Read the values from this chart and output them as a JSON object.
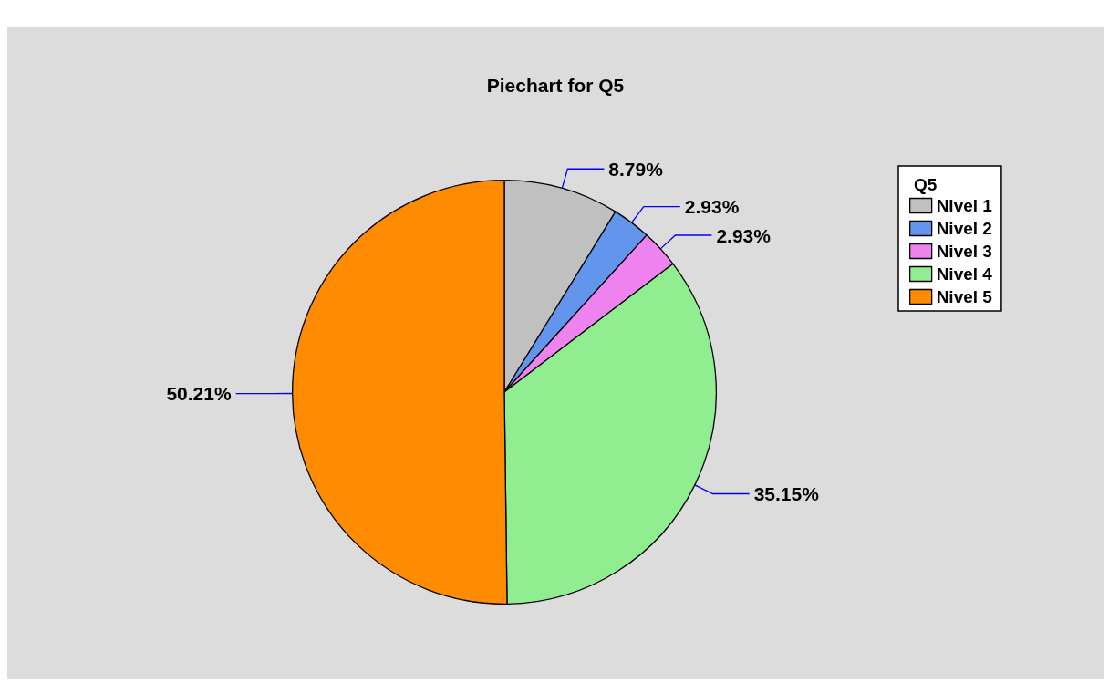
{
  "chart_data": {
    "type": "pie",
    "title": "Piechart for Q5",
    "legend_title": "Q5",
    "legend": "top right",
    "value_labels": [
      "8.79%",
      "2.93%",
      "2.93%",
      "35.15%",
      "50.21%"
    ],
    "categories": [
      "Nivel 1",
      "Nivel 2",
      "Nivel 3",
      "Nivel 4",
      "Nivel 5"
    ],
    "values": [
      8.79,
      2.93,
      2.93,
      35.15,
      50.21
    ],
    "colors": [
      "#c0c0c0",
      "#6495ed",
      "#ee82ee",
      "#90ee90",
      "#ff8c00"
    ]
  }
}
